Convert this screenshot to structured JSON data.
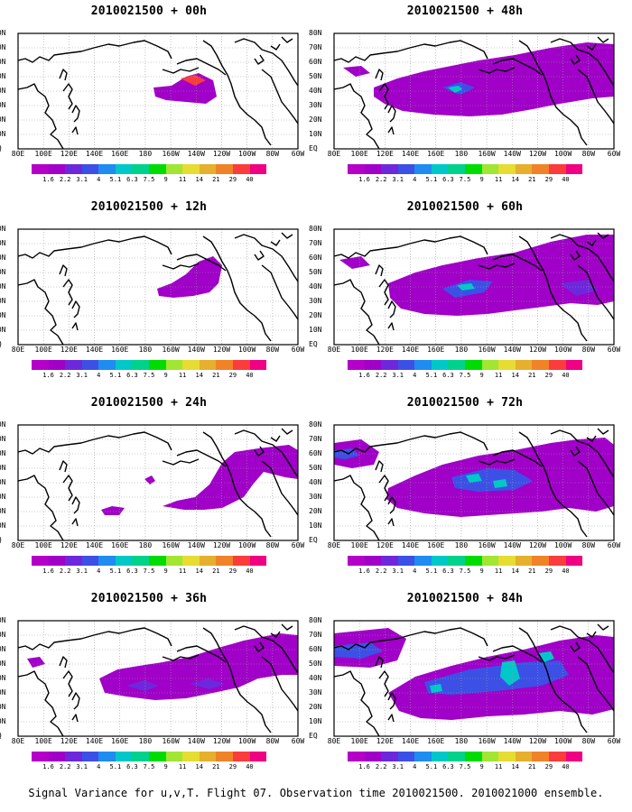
{
  "panels": [
    {
      "title": "2010021500 + 00h"
    },
    {
      "title": "2010021500 + 12h"
    },
    {
      "title": "2010021500 + 24h"
    },
    {
      "title": "2010021500 + 36h"
    },
    {
      "title": "2010021500 + 48h"
    },
    {
      "title": "2010021500 + 60h"
    },
    {
      "title": "2010021500 + 72h"
    },
    {
      "title": "2010021500 + 84h"
    }
  ],
  "lat_labels": [
    "80N",
    "70N",
    "60N",
    "50N",
    "40N",
    "30N",
    "20N",
    "10N",
    "EQ"
  ],
  "lon_labels": [
    "80E",
    "100E",
    "120E",
    "140E",
    "160E",
    "180",
    "160W",
    "140W",
    "120W",
    "100W",
    "80W",
    "60W"
  ],
  "colorbar": {
    "labels": [
      "1.6",
      "2.2",
      "3.1",
      "4",
      "5.1",
      "6.3",
      "7.5",
      "9",
      "11",
      "14",
      "21",
      "29",
      "40"
    ],
    "colors": [
      "#a000c8",
      "#6e28dc",
      "#3c50e6",
      "#1e8cf0",
      "#00c8c8",
      "#00d28c",
      "#00dc00",
      "#a0e632",
      "#e6dc32",
      "#e6af2d",
      "#f08228",
      "#fa3c3c",
      "#f00082"
    ]
  },
  "footer": "Signal Variance for u,v,T. Flight 07. Observation time 2010021500. 2010021000 ensemble."
}
